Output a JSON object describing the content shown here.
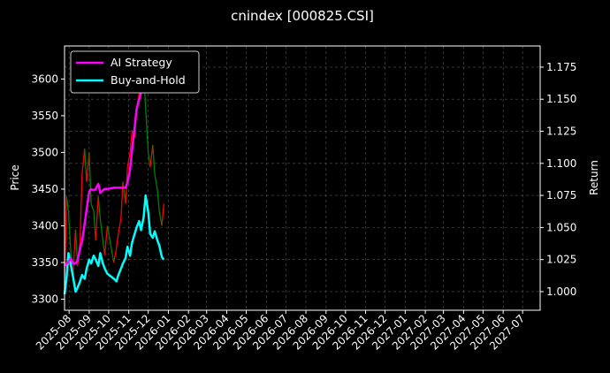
{
  "chart_data": {
    "type": "line",
    "title": "cnindex [000825.CSI]",
    "xlabel": "",
    "ylabel": "Price",
    "y2label": "Return",
    "grid": true,
    "legend_position": "top-left",
    "x_ticks": [
      "2025-08",
      "2025-09",
      "2025-10",
      "2025-11",
      "2025-12",
      "2026-01",
      "2026-02",
      "2026-03",
      "2026-04",
      "2026-05",
      "2026-06",
      "2026-07",
      "2026-08",
      "2026-09",
      "2026-10",
      "2026-11",
      "2026-12",
      "2027-01",
      "2027-02",
      "2027-03",
      "2027-04",
      "2027-05",
      "2027-06",
      "2027-07"
    ],
    "xlim": [
      "2025-07-25",
      "2027-07-28"
    ],
    "y_ticks": [
      3300,
      3350,
      3400,
      3450,
      3500,
      3550,
      3600
    ],
    "ylim": [
      3285,
      3645
    ],
    "y2_ticks": [
      "1.000",
      "1.025",
      "1.050",
      "1.075",
      "1.100",
      "1.125",
      "1.150",
      "1.175"
    ],
    "y2lim": [
      0.9855,
      1.1915
    ],
    "colors": {
      "ai": "#ff00ff",
      "bh": "#00ffff",
      "up": "#ff0000",
      "down": "#008000",
      "grid": "#555555"
    },
    "series": [
      {
        "name": "AI Strategy",
        "axis": "right",
        "x": [
          "2025-07-25",
          "2025-08-01",
          "2025-08-04",
          "2025-08-07",
          "2025-08-11",
          "2025-08-14",
          "2025-08-18",
          "2025-08-21",
          "2025-08-25",
          "2025-08-28",
          "2025-09-01",
          "2025-09-04",
          "2025-09-08",
          "2025-09-11",
          "2025-09-15",
          "2025-09-18",
          "2025-09-22",
          "2025-09-25",
          "2025-09-29",
          "2025-10-09",
          "2025-10-13",
          "2025-10-16",
          "2025-10-20",
          "2025-10-23",
          "2025-10-27",
          "2025-10-30",
          "2025-11-03",
          "2025-11-06",
          "2025-11-10",
          "2025-11-13",
          "2025-11-17",
          "2025-11-20",
          "2025-11-24",
          "2025-11-27",
          "2025-12-01",
          "2025-12-04",
          "2025-12-08",
          "2025-12-11",
          "2025-12-15",
          "2025-12-18"
        ],
        "values": [
          1.02,
          1.024,
          1.026,
          1.022,
          1.022,
          1.024,
          1.034,
          1.039,
          1.053,
          1.064,
          1.078,
          1.08,
          1.079,
          1.08,
          1.084,
          1.077,
          1.079,
          1.08,
          1.08,
          1.081,
          1.081,
          1.081,
          1.081,
          1.081,
          1.081,
          1.085,
          1.095,
          1.11,
          1.128,
          1.142,
          1.15,
          1.155,
          1.16,
          1.168,
          1.17,
          1.172,
          1.174,
          1.176,
          1.178,
          1.178
        ]
      },
      {
        "name": "Buy-and-Hold",
        "axis": "right",
        "x": [
          "2025-07-25",
          "2025-07-28",
          "2025-07-31",
          "2025-08-04",
          "2025-08-07",
          "2025-08-11",
          "2025-08-14",
          "2025-08-18",
          "2025-08-21",
          "2025-08-25",
          "2025-08-28",
          "2025-09-01",
          "2025-09-04",
          "2025-09-08",
          "2025-09-11",
          "2025-09-15",
          "2025-09-18",
          "2025-09-22",
          "2025-09-25",
          "2025-09-29",
          "2025-10-09",
          "2025-10-13",
          "2025-10-16",
          "2025-10-20",
          "2025-10-23",
          "2025-10-27",
          "2025-10-30",
          "2025-11-03",
          "2025-11-06",
          "2025-11-10",
          "2025-11-13",
          "2025-11-17",
          "2025-11-20",
          "2025-11-24",
          "2025-11-27",
          "2025-12-01",
          "2025-12-04",
          "2025-12-08",
          "2025-12-11",
          "2025-12-15",
          "2025-12-18",
          "2025-12-22",
          "2025-12-25"
        ],
        "values": [
          0.998,
          1.01,
          1.03,
          1.02,
          1.012,
          1.0,
          1.003,
          1.008,
          1.013,
          1.01,
          1.018,
          1.025,
          1.022,
          1.028,
          1.025,
          1.02,
          1.03,
          1.022,
          1.018,
          1.014,
          1.01,
          1.008,
          1.013,
          1.018,
          1.022,
          1.026,
          1.035,
          1.028,
          1.038,
          1.045,
          1.05,
          1.055,
          1.048,
          1.058,
          1.075,
          1.062,
          1.045,
          1.042,
          1.047,
          1.04,
          1.036,
          1.027,
          1.025
        ]
      },
      {
        "name": "",
        "axis": "left",
        "style": "colored-segments",
        "x": [
          "2025-07-25",
          "2025-07-28",
          "2025-07-31",
          "2025-08-04",
          "2025-08-07",
          "2025-08-11",
          "2025-08-14",
          "2025-08-18",
          "2025-08-21",
          "2025-08-25",
          "2025-08-28",
          "2025-09-01",
          "2025-09-04",
          "2025-09-08",
          "2025-09-11",
          "2025-09-15",
          "2025-09-18",
          "2025-09-22",
          "2025-09-25",
          "2025-09-29",
          "2025-10-09",
          "2025-10-13",
          "2025-10-16",
          "2025-10-20",
          "2025-10-23",
          "2025-10-27",
          "2025-10-30",
          "2025-11-03",
          "2025-11-06",
          "2025-11-10",
          "2025-11-13",
          "2025-11-17",
          "2025-11-20",
          "2025-11-24",
          "2025-11-27",
          "2025-12-01",
          "2025-12-04",
          "2025-12-08",
          "2025-12-11",
          "2025-12-15",
          "2025-12-18",
          "2025-12-22",
          "2025-12-25"
        ],
        "values": [
          3310,
          3440,
          3420,
          3360,
          3330,
          3395,
          3345,
          3380,
          3470,
          3505,
          3460,
          3500,
          3430,
          3420,
          3380,
          3440,
          3410,
          3380,
          3360,
          3400,
          3350,
          3370,
          3390,
          3410,
          3460,
          3430,
          3480,
          3500,
          3530,
          3520,
          3560,
          3580,
          3600,
          3610,
          3560,
          3500,
          3480,
          3510,
          3470,
          3450,
          3420,
          3400,
          3430
        ]
      }
    ]
  },
  "legend": {
    "ai_label": "AI Strategy",
    "bh_label": "Buy-and-Hold"
  }
}
